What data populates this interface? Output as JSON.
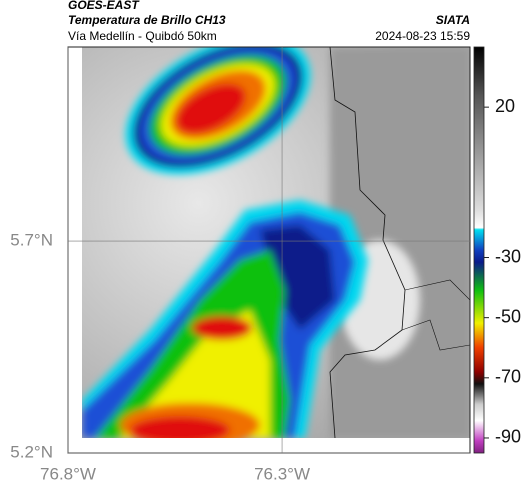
{
  "header": {
    "title": "GOES-EAST",
    "subtitle": "Temperatura de Brillo CH13",
    "route": "Vía Medellín - Quibdó 50km",
    "source": "SIATA",
    "timestamp": "2024-08-23 15:59"
  },
  "map": {
    "xlim": [
      -76.8,
      -75.861
    ],
    "ylim": [
      5.2,
      6.158
    ],
    "xticks": [
      {
        "value": -76.8,
        "label": "76.8°W"
      },
      {
        "value": -76.3,
        "label": "76.3°W"
      }
    ],
    "yticks": [
      {
        "value": 5.2,
        "label": "5.2°N"
      },
      {
        "value": 5.7,
        "label": "5.7°N"
      }
    ],
    "grid": true
  },
  "colorbar": {
    "lim": [
      -95,
      40
    ],
    "ticks": [
      20,
      -30,
      -50,
      -70,
      -90
    ]
  }
}
